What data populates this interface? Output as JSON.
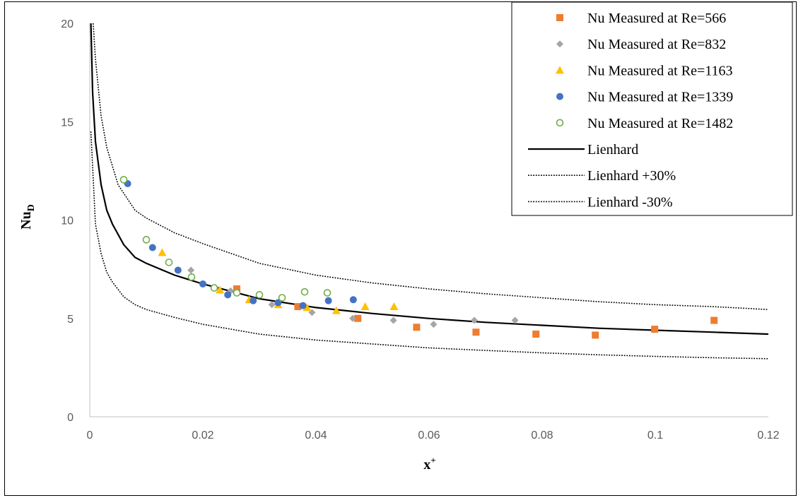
{
  "chart_data": {
    "type": "scatter",
    "title": "",
    "xlabel": "x",
    "xlabel_sup": "+",
    "ylabel": "Nu",
    "ylabel_sub": "D",
    "xlim": [
      0,
      0.12
    ],
    "ylim": [
      0,
      20
    ],
    "x_ticks": [
      "0",
      "0.02",
      "0.04",
      "0.06",
      "0.08",
      "0.1",
      "0.12"
    ],
    "y_ticks": [
      "0",
      "5",
      "10",
      "15",
      "20"
    ],
    "grid": false,
    "legend_position": "top-right",
    "series": [
      {
        "name": "Nu Measured at Re=566",
        "marker": "square",
        "color": "#ED7D31",
        "points": [
          [
            0.026,
            6.5
          ],
          [
            0.0368,
            5.6
          ],
          [
            0.0474,
            5.0
          ],
          [
            0.0578,
            4.55
          ],
          [
            0.0683,
            4.3
          ],
          [
            0.0789,
            4.2
          ],
          [
            0.0894,
            4.15
          ],
          [
            0.0999,
            4.45
          ],
          [
            0.1104,
            4.9
          ]
        ]
      },
      {
        "name": "Nu Measured at Re=832",
        "marker": "diamond",
        "color": "#A5A5A5",
        "points": [
          [
            0.0179,
            7.45
          ],
          [
            0.0249,
            6.4
          ],
          [
            0.0322,
            5.7
          ],
          [
            0.0393,
            5.3
          ],
          [
            0.0465,
            5.0
          ],
          [
            0.0537,
            4.9
          ],
          [
            0.0608,
            4.7
          ],
          [
            0.068,
            4.9
          ],
          [
            0.0752,
            4.9
          ]
        ]
      },
      {
        "name": "Nu Measured at Re=1163",
        "marker": "triangle",
        "color": "#FFC000",
        "points": [
          [
            0.0128,
            8.35
          ],
          [
            0.023,
            6.45
          ],
          [
            0.0282,
            5.95
          ],
          [
            0.0333,
            5.7
          ],
          [
            0.0384,
            5.55
          ],
          [
            0.0436,
            5.4
          ],
          [
            0.0487,
            5.6
          ],
          [
            0.0538,
            5.6
          ]
        ]
      },
      {
        "name": "Nu Measured at Re=1339",
        "marker": "circle",
        "color": "#4472C4",
        "points": [
          [
            0.0067,
            11.85
          ],
          [
            0.0111,
            8.6
          ],
          [
            0.0156,
            7.45
          ],
          [
            0.02,
            6.75
          ],
          [
            0.0244,
            6.2
          ],
          [
            0.0289,
            5.9
          ],
          [
            0.0333,
            5.8
          ],
          [
            0.0377,
            5.65
          ],
          [
            0.0422,
            5.9
          ],
          [
            0.0466,
            5.95
          ]
        ]
      },
      {
        "name": "Nu Measured at Re=1482",
        "marker": "circle-open",
        "color": "#70AD47",
        "points": [
          [
            0.006,
            12.05
          ],
          [
            0.01,
            9.0
          ],
          [
            0.014,
            7.85
          ],
          [
            0.018,
            7.1
          ],
          [
            0.022,
            6.55
          ],
          [
            0.026,
            6.3
          ],
          [
            0.03,
            6.2
          ],
          [
            0.034,
            6.05
          ],
          [
            0.038,
            6.35
          ],
          [
            0.042,
            6.3
          ]
        ]
      },
      {
        "name": "Lienhard",
        "marker": "line",
        "color": "#000000",
        "points": [
          [
            0.0002,
            20.0
          ],
          [
            0.0005,
            16.5
          ],
          [
            0.001,
            14.0
          ],
          [
            0.002,
            11.8
          ],
          [
            0.003,
            10.5
          ],
          [
            0.004,
            9.8
          ],
          [
            0.006,
            8.75
          ],
          [
            0.008,
            8.1
          ],
          [
            0.01,
            7.8
          ],
          [
            0.015,
            7.2
          ],
          [
            0.02,
            6.75
          ],
          [
            0.03,
            6.0
          ],
          [
            0.04,
            5.55
          ],
          [
            0.05,
            5.25
          ],
          [
            0.06,
            5.0
          ],
          [
            0.07,
            4.8
          ],
          [
            0.08,
            4.65
          ],
          [
            0.09,
            4.5
          ],
          [
            0.1,
            4.4
          ],
          [
            0.11,
            4.3
          ],
          [
            0.12,
            4.2
          ]
        ]
      },
      {
        "name": "Lienhard +30%",
        "marker": "dotted",
        "color": "#000000",
        "points": [
          [
            0.0006,
            20.0
          ],
          [
            0.001,
            18.2
          ],
          [
            0.002,
            15.3
          ],
          [
            0.003,
            13.7
          ],
          [
            0.005,
            11.8
          ],
          [
            0.008,
            10.5
          ],
          [
            0.01,
            10.1
          ],
          [
            0.015,
            9.35
          ],
          [
            0.02,
            8.8
          ],
          [
            0.03,
            7.8
          ],
          [
            0.04,
            7.2
          ],
          [
            0.05,
            6.8
          ],
          [
            0.06,
            6.5
          ],
          [
            0.07,
            6.25
          ],
          [
            0.08,
            6.05
          ],
          [
            0.09,
            5.85
          ],
          [
            0.1,
            5.7
          ],
          [
            0.11,
            5.6
          ],
          [
            0.12,
            5.45
          ]
        ]
      },
      {
        "name": "Lienhard -30%",
        "marker": "dotted",
        "color": "#000000",
        "points": [
          [
            0.0002,
            14.5
          ],
          [
            0.001,
            9.8
          ],
          [
            0.002,
            8.3
          ],
          [
            0.003,
            7.35
          ],
          [
            0.004,
            6.85
          ],
          [
            0.006,
            6.1
          ],
          [
            0.008,
            5.7
          ],
          [
            0.01,
            5.45
          ],
          [
            0.015,
            5.05
          ],
          [
            0.02,
            4.7
          ],
          [
            0.03,
            4.2
          ],
          [
            0.04,
            3.9
          ],
          [
            0.05,
            3.7
          ],
          [
            0.06,
            3.5
          ],
          [
            0.07,
            3.37
          ],
          [
            0.08,
            3.25
          ],
          [
            0.09,
            3.15
          ],
          [
            0.1,
            3.07
          ],
          [
            0.11,
            3.0
          ],
          [
            0.12,
            2.95
          ]
        ]
      }
    ]
  }
}
